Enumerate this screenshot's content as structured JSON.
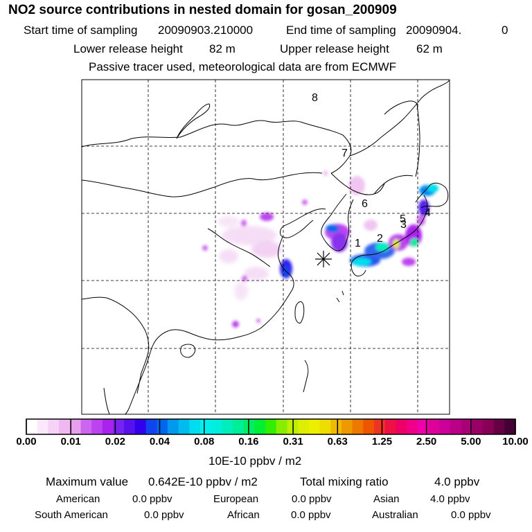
{
  "title": "NO2 source contributions in nested domain for gosan_200909",
  "header": {
    "start_label": "Start time of sampling",
    "start_value": "20090903.210000",
    "end_label": "End time of sampling",
    "end_value": "20090904.",
    "end_suffix": "0",
    "lower_label": "Lower release height",
    "lower_value": "82 m",
    "upper_label": "Upper release height",
    "upper_value": "62 m",
    "note": "Passive tracer used, meteorological data are from ECMWF"
  },
  "map": {
    "region_labels": [
      "1",
      "2",
      "3",
      "4",
      "5",
      "6",
      "7",
      "8"
    ],
    "receptor_marker": "asterisk-icon"
  },
  "colorbar": {
    "colors": [
      "#ffffff",
      "#fbe9fb",
      "#f6d2f6",
      "#f0b8f0",
      "#e8a0ee",
      "#cc66ee",
      "#bb44ee",
      "#aa22ee",
      "#7722ee",
      "#5511ee",
      "#3300ee",
      "#1144ee",
      "#0066ee",
      "#0099ee",
      "#00bbee",
      "#00ddee",
      "#00eeee",
      "#00eedd",
      "#00eebb",
      "#00ee99",
      "#00ee66",
      "#00ee33",
      "#33ee00",
      "#88ee00",
      "#bbee00",
      "#ddee00",
      "#eeee00",
      "#eedd00",
      "#eebb00",
      "#ee9900",
      "#ee7700",
      "#ee5500",
      "#ee3322",
      "#ee1144",
      "#ee0066",
      "#ee0088",
      "#ee00aa",
      "#dd0099",
      "#cc0099",
      "#bb0088",
      "#aa0077",
      "#990066",
      "#880055",
      "#660044",
      "#440033"
    ],
    "ticks": [
      "0.00",
      "0.01",
      "0.02",
      "0.04",
      "0.08",
      "0.16",
      "0.31",
      "0.63",
      "1.25",
      "2.50",
      "5.00",
      "10.00"
    ],
    "units": "10E-10 ppbv / m2"
  },
  "summary": {
    "max_label": "Maximum value",
    "max_value": "0.642E-10 ppbv / m2",
    "total_label": "Total mixing ratio",
    "total_value": "4.0 ppbv",
    "rows": [
      [
        {
          "label": "American",
          "value": "0.0 ppbv"
        },
        {
          "label": "European",
          "value": "0.0 ppbv"
        },
        {
          "label": "Asian",
          "value": "4.0 ppbv"
        }
      ],
      [
        {
          "label": "South American",
          "value": "0.0 ppbv"
        },
        {
          "label": "African",
          "value": "0.0 ppbv"
        },
        {
          "label": "Australian",
          "value": "0.0 ppbv"
        }
      ]
    ]
  }
}
